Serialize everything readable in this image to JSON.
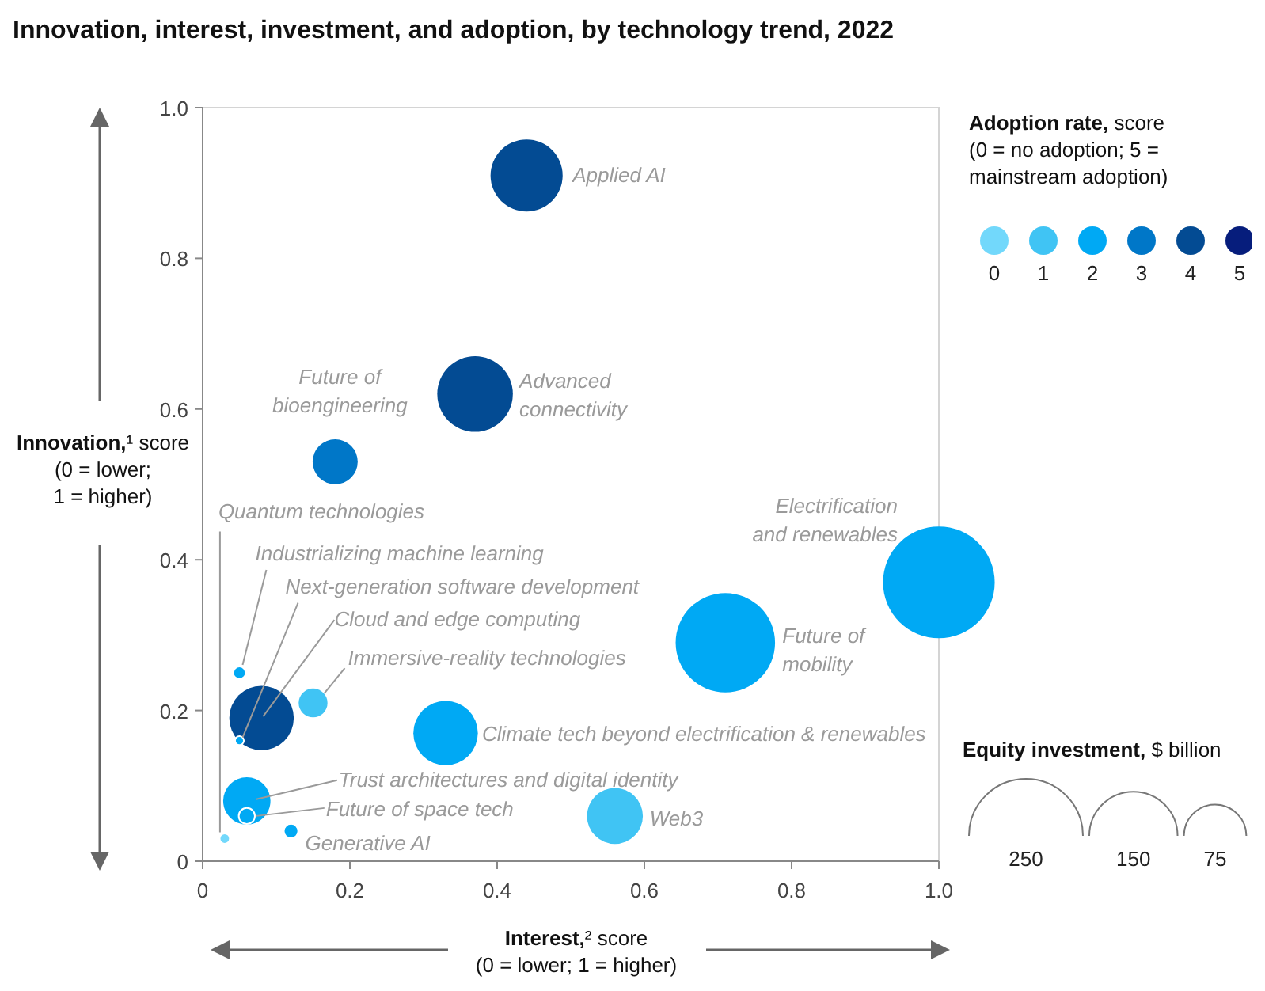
{
  "chart_data": {
    "type": "bubble",
    "title": "Innovation, interest, investment, and adoption, by technology trend, 2022",
    "xlabel": "Interest,² score (0 = lower; 1 = higher)",
    "ylabel": "Innovation,¹ score (0 = lower; 1 = higher)",
    "xlim": [
      0,
      1
    ],
    "ylim": [
      0,
      1
    ],
    "xticks": [
      0,
      0.2,
      0.4,
      0.6,
      0.8,
      {
        "value": 1,
        "label": "1.0"
      }
    ],
    "yticks": [
      0,
      0.2,
      0.4,
      0.6,
      0.8,
      {
        "value": 1,
        "label": "1.0"
      }
    ],
    "legend": "top right",
    "legend_title": "Adoption rate, score (0 = no adoption; 5 = mainstream adoption)",
    "size_legend": [
      250,
      150,
      75
    ],
    "series": [
      {
        "name": "0",
        "color": "#72d8fb",
        "x": [
          0.03
        ],
        "values": [
          0.03
        ],
        "sizes": [
          2
        ]
      },
      {
        "name": "1",
        "color": "#40c4f4",
        "x": [
          0.56,
          0.15
        ],
        "values": [
          0.06,
          0.21
        ],
        "sizes": [
          60,
          16
        ]
      },
      {
        "name": "2",
        "color": "#00a9f4",
        "x": [
          1.0,
          0.71,
          0.33,
          0.06,
          0.05,
          0.05,
          0.06,
          0.12
        ],
        "values": [
          0.37,
          0.29,
          0.17,
          0.08,
          0.25,
          0.16,
          0.06,
          0.04
        ],
        "sizes": [
          240,
          190,
          80,
          43,
          3,
          1.5,
          5,
          4
        ]
      },
      {
        "name": "3",
        "color": "#0077c8",
        "x": [
          0.18
        ],
        "values": [
          0.53
        ],
        "sizes": [
          39
        ]
      },
      {
        "name": "4",
        "color": "#034b93",
        "x": [
          0.44,
          0.37,
          0.08
        ],
        "values": [
          0.91,
          0.62,
          0.19
        ],
        "sizes": [
          100,
          110,
          80
        ]
      },
      {
        "name": "5",
        "color": "#061d7c"
      }
    ],
    "annotations": [
      {
        "text": "Applied AI",
        "x": 0.44,
        "y": 0.91
      },
      {
        "text": "Advanced connectivity",
        "x": 0.37,
        "y": 0.62
      },
      {
        "text": "Future of bioengineering",
        "x": 0.18,
        "y": 0.53
      },
      {
        "text": "Electrification and renewables",
        "x": 1.0,
        "y": 0.37
      },
      {
        "text": "Future of mobility",
        "x": 0.71,
        "y": 0.29
      },
      {
        "text": "Climate tech beyond electrification & renewables",
        "x": 0.33,
        "y": 0.17
      },
      {
        "text": "Web3",
        "x": 0.56,
        "y": 0.06
      },
      {
        "text": "Cloud and edge computing",
        "x": 0.08,
        "y": 0.19
      },
      {
        "text": "Immersive-reality technologies",
        "x": 0.15,
        "y": 0.21
      },
      {
        "text": "Quantum technologies",
        "x": 0.03,
        "y": 0.03
      },
      {
        "text": "Industrializing machine learning",
        "x": 0.05,
        "y": 0.25
      },
      {
        "text": "Next-generation software development",
        "x": 0.05,
        "y": 0.16
      },
      {
        "text": "Trust architectures and digital identity",
        "x": 0.06,
        "y": 0.08
      },
      {
        "text": "Future of space tech",
        "x": 0.06,
        "y": 0.06
      },
      {
        "text": "Generative AI",
        "x": 0.12,
        "y": 0.04
      },
      "Equity investment, $ billion"
    ]
  }
}
